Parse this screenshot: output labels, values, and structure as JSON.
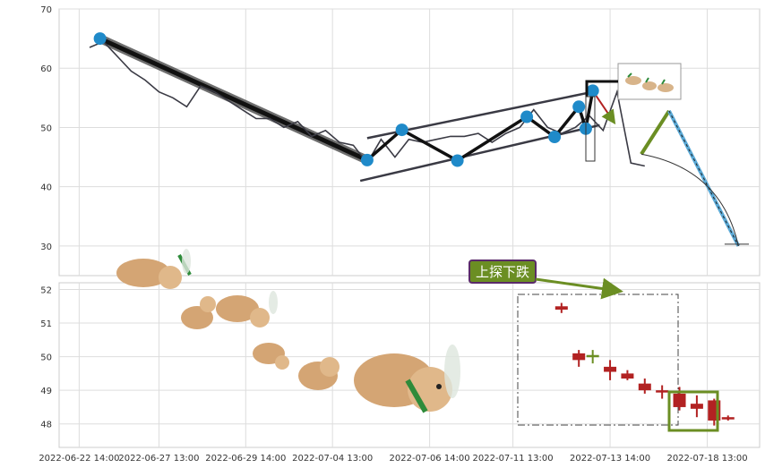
{
  "chart_data": [
    {
      "type": "line",
      "title": "",
      "xlabel": "",
      "ylabel": "",
      "ylim": [
        25,
        70
      ],
      "yticks": [
        30,
        40,
        50,
        60,
        70
      ],
      "grid": true,
      "series": [
        {
          "x_index": [
            0,
            4,
            8,
            12,
            16,
            20,
            24,
            28,
            32,
            36,
            40,
            44,
            48,
            52,
            56,
            60,
            64,
            68,
            72,
            76,
            80,
            84,
            88,
            92,
            96,
            100,
            104,
            108,
            112,
            116,
            120,
            124,
            128,
            132,
            136,
            140,
            144,
            148,
            152,
            156,
            160
          ],
          "values": [
            63.5,
            64.5,
            62,
            59.5,
            58,
            56,
            55,
            53.5,
            57,
            56,
            54.5,
            53,
            51.5,
            51.5,
            50,
            51,
            48.5,
            49.5,
            47.5,
            47,
            44,
            48,
            45,
            48,
            47.5,
            48,
            48.5,
            48.5,
            49,
            47.5,
            49,
            50,
            53,
            50,
            49,
            50,
            52,
            49.5,
            56,
            44,
            43.5
          ],
          "color": "#3a3a44"
        }
      ],
      "pattern_markers": [
        {
          "xi": 3,
          "y": 65.0
        },
        {
          "xi": 80,
          "y": 44.5
        },
        {
          "xi": 90,
          "y": 49.6
        },
        {
          "xi": 106,
          "y": 44.4
        },
        {
          "xi": 126,
          "y": 51.8
        },
        {
          "xi": 134,
          "y": 48.4
        },
        {
          "xi": 141,
          "y": 53.5
        },
        {
          "xi": 143,
          "y": 49.8
        },
        {
          "xi": 145,
          "y": 56.2
        }
      ],
      "channel": {
        "upper": [
          {
            "xi": 80,
            "y": 48.2
          },
          {
            "xi": 145,
            "y": 56.0
          }
        ],
        "lower": [
          {
            "xi": 78,
            "y": 41.0
          },
          {
            "xi": 147,
            "y": 50.4
          }
        ]
      },
      "trend_line": [
        {
          "xi": 3,
          "y": 65.0
        },
        {
          "xi": 80,
          "y": 44.5
        }
      ],
      "projection": [
        {
          "xi": 159,
          "y": 45.5
        },
        {
          "xi": 167,
          "y": 52.8
        },
        {
          "xi": 187,
          "y": 30.0
        }
      ],
      "accent_colors": {
        "marker": "#1f8ac9",
        "projection_up": "#6b8e23",
        "projection_down": "#5aa9d6",
        "zigzag": "#111111"
      }
    },
    {
      "type": "candlestick",
      "title": "",
      "xlabel": "",
      "ylabel": "",
      "ylim": [
        47.3,
        52.2
      ],
      "yticks": [
        48,
        49,
        50,
        51,
        52
      ],
      "grid": true,
      "x_tick_labels": [
        "2022-06-22 14:00",
        "2022-06-27 13:00",
        "2022-06-29 14:00",
        "2022-07-04 13:00",
        "2022-07-06 14:00",
        "2022-07-11 13:00",
        "2022-07-13 14:00",
        "2022-07-18 13:00"
      ],
      "candles": [
        {
          "xi": 136,
          "open": 51.5,
          "close": 51.4,
          "high": 51.6,
          "low": 51.3
        },
        {
          "xi": 141,
          "open": 50.1,
          "close": 49.9,
          "high": 50.2,
          "low": 49.7
        },
        {
          "xi": 145,
          "open": 50.0,
          "close": 50.05,
          "high": 50.2,
          "low": 49.8
        },
        {
          "xi": 150,
          "open": 49.7,
          "close": 49.55,
          "high": 49.9,
          "low": 49.3
        },
        {
          "xi": 155,
          "open": 49.5,
          "close": 49.35,
          "high": 49.6,
          "low": 49.3
        },
        {
          "xi": 160,
          "open": 49.2,
          "close": 49.0,
          "high": 49.35,
          "low": 48.9
        },
        {
          "xi": 165,
          "open": 49.0,
          "close": 48.95,
          "high": 49.15,
          "low": 48.75
        },
        {
          "xi": 170,
          "open": 48.9,
          "close": 48.5,
          "high": 49.1,
          "low": 48.4
        },
        {
          "xi": 175,
          "open": 48.6,
          "close": 48.45,
          "high": 48.85,
          "low": 48.2
        },
        {
          "xi": 180,
          "open": 48.7,
          "close": 48.1,
          "high": 48.75,
          "low": 47.95
        },
        {
          "xi": 184,
          "open": 48.2,
          "close": 48.15,
          "high": 48.25,
          "low": 48.1
        }
      ],
      "annotation": {
        "label": "上探下跌",
        "label_bg": "#6b8e23",
        "label_border": "#5a2a6a"
      },
      "candle_colors": {
        "up": "#6b8e23",
        "down": "#b22222"
      }
    }
  ]
}
